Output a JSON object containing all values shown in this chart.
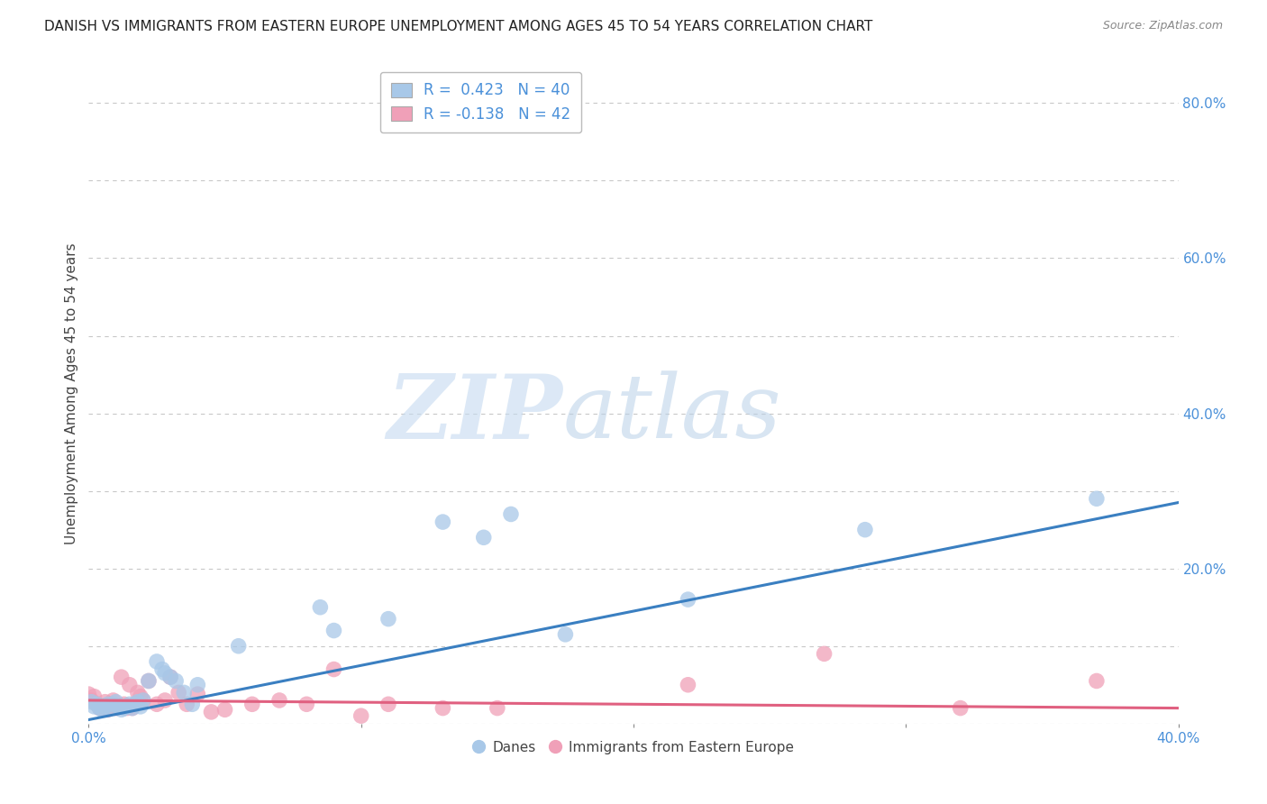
{
  "title": "DANISH VS IMMIGRANTS FROM EASTERN EUROPE UNEMPLOYMENT AMONG AGES 45 TO 54 YEARS CORRELATION CHART",
  "source": "Source: ZipAtlas.com",
  "ylabel": "Unemployment Among Ages 45 to 54 years",
  "xlim": [
    0.0,
    0.4
  ],
  "ylim": [
    0.0,
    0.85
  ],
  "xticks": [
    0.0,
    0.1,
    0.2,
    0.3,
    0.4
  ],
  "yticks_right": [
    0.0,
    0.2,
    0.4,
    0.6,
    0.8
  ],
  "ytick_right_labels": [
    "",
    "20.0%",
    "40.0%",
    "60.0%",
    "80.0%"
  ],
  "xtick_labels": [
    "0.0%",
    "",
    "",
    "",
    "40.0%"
  ],
  "grid_color": "#c8c8c8",
  "background_color": "#ffffff",
  "color_danes": "#a8c8e8",
  "color_immigrants": "#f0a0b8",
  "color_danes_line": "#3a7fc1",
  "color_immigrants_line": "#e06080",
  "title_fontsize": 11,
  "danes_x": [
    0.001,
    0.002,
    0.003,
    0.004,
    0.005,
    0.006,
    0.007,
    0.008,
    0.009,
    0.01,
    0.011,
    0.012,
    0.013,
    0.014,
    0.015,
    0.016,
    0.017,
    0.018,
    0.019,
    0.02,
    0.022,
    0.025,
    0.027,
    0.028,
    0.03,
    0.032,
    0.035,
    0.038,
    0.04,
    0.055,
    0.085,
    0.09,
    0.11,
    0.13,
    0.145,
    0.155,
    0.175,
    0.22,
    0.285,
    0.37
  ],
  "danes_y": [
    0.028,
    0.022,
    0.025,
    0.02,
    0.018,
    0.022,
    0.025,
    0.02,
    0.025,
    0.028,
    0.022,
    0.018,
    0.02,
    0.022,
    0.025,
    0.02,
    0.025,
    0.028,
    0.022,
    0.03,
    0.055,
    0.08,
    0.07,
    0.065,
    0.06,
    0.055,
    0.04,
    0.025,
    0.05,
    0.1,
    0.15,
    0.12,
    0.135,
    0.26,
    0.24,
    0.27,
    0.115,
    0.16,
    0.25,
    0.29
  ],
  "immigrants_x": [
    0.0,
    0.001,
    0.002,
    0.003,
    0.004,
    0.005,
    0.006,
    0.007,
    0.008,
    0.009,
    0.01,
    0.011,
    0.012,
    0.013,
    0.014,
    0.015,
    0.016,
    0.017,
    0.018,
    0.019,
    0.02,
    0.022,
    0.025,
    0.028,
    0.03,
    0.033,
    0.036,
    0.04,
    0.045,
    0.05,
    0.06,
    0.07,
    0.08,
    0.09,
    0.1,
    0.11,
    0.13,
    0.15,
    0.22,
    0.27,
    0.32,
    0.37
  ],
  "immigrants_y": [
    0.038,
    0.03,
    0.035,
    0.025,
    0.02,
    0.022,
    0.028,
    0.018,
    0.025,
    0.03,
    0.02,
    0.022,
    0.06,
    0.025,
    0.02,
    0.05,
    0.02,
    0.025,
    0.04,
    0.035,
    0.03,
    0.055,
    0.025,
    0.03,
    0.06,
    0.04,
    0.025,
    0.038,
    0.015,
    0.018,
    0.025,
    0.03,
    0.025,
    0.07,
    0.01,
    0.025,
    0.02,
    0.02,
    0.05,
    0.09,
    0.02,
    0.055
  ],
  "danes_line_x": [
    0.0,
    0.4
  ],
  "danes_line_y": [
    0.005,
    0.285
  ],
  "immigrants_line_x": [
    0.0,
    0.4
  ],
  "immigrants_line_y": [
    0.03,
    0.02
  ]
}
